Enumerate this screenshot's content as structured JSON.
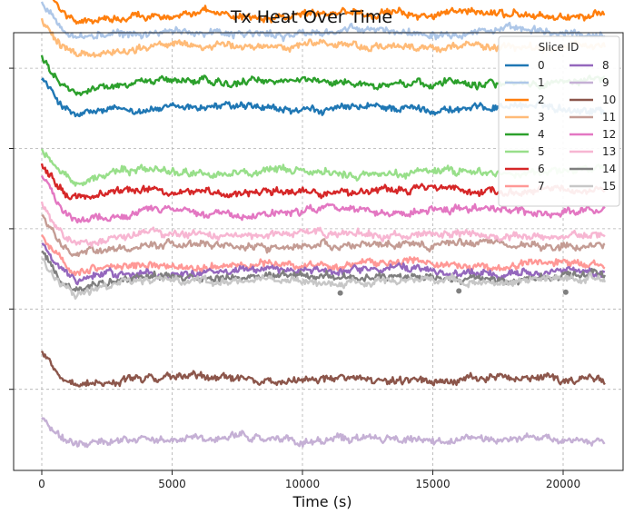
{
  "chart_data": {
    "type": "line",
    "title": "Tx Heat Over Time",
    "xlabel": "Time (s)",
    "ylabel": "",
    "x_ticks": [
      0,
      5000,
      10000,
      15000,
      20000
    ],
    "x_tick_labels": [
      "0",
      "5000",
      "10000",
      "15000",
      "20000"
    ],
    "xlim": [
      -800,
      22800
    ],
    "ylim": [
      0,
      100
    ],
    "y_ticks": [
      15,
      35,
      55,
      75,
      95,
      115
    ],
    "y_tick_labels_visible": false,
    "grid": true,
    "x_range": [
      0,
      21600
    ],
    "legend": {
      "title": "Slice ID",
      "placement": "top-right",
      "columns": 2
    },
    "series": [
      {
        "name": "0",
        "color": "#1f77b4",
        "start": 93.0,
        "dip": 82.5,
        "plateau": 85.0
      },
      {
        "name": "1",
        "color": "#aec7e8",
        "start": 111.0,
        "dip": 102.0,
        "plateau": 104.0
      },
      {
        "name": "2",
        "color": "#ff7f0e",
        "start": 116.0,
        "dip": 106.5,
        "plateau": 108.5
      },
      {
        "name": "3",
        "color": "#ffbb78",
        "start": 107.0,
        "dip": 98.5,
        "plateau": 100.5
      },
      {
        "name": "4",
        "color": "#2ca02c",
        "start": 98.0,
        "dip": 89.5,
        "plateau": 91.5
      },
      {
        "name": "5",
        "color": "#98df8a",
        "start": 75.5,
        "dip": 67.0,
        "plateau": 69.0
      },
      {
        "name": "6",
        "color": "#d62728",
        "start": 71.5,
        "dip": 62.5,
        "plateau": 64.5
      },
      {
        "name": "7",
        "color": "#ff9896",
        "start": 53.0,
        "dip": 43.5,
        "plateau": 46.0
      },
      {
        "name": "8",
        "color": "#9467bd",
        "start": 51.5,
        "dip": 42.0,
        "plateau": 44.5
      },
      {
        "name": "9",
        "color": "#c5b0d5",
        "start": 8.0,
        "dip": 1.0,
        "plateau": 2.5
      },
      {
        "name": "10",
        "color": "#8c564b",
        "start": 24.0,
        "dip": 15.5,
        "plateau": 17.5
      },
      {
        "name": "11",
        "color": "#c49c94",
        "start": 58.0,
        "dip": 48.5,
        "plateau": 51.0
      },
      {
        "name": "12",
        "color": "#e377c2",
        "start": 67.0,
        "dip": 57.5,
        "plateau": 59.5
      },
      {
        "name": "13",
        "color": "#f7b6d2",
        "start": 61.0,
        "dip": 51.5,
        "plateau": 53.5
      },
      {
        "name": "14",
        "color": "#7f7f7f",
        "start": 50.0,
        "dip": 40.5,
        "plateau": 43.0
      },
      {
        "name": "15",
        "color": "#c7c7c7",
        "start": 49.0,
        "dip": 39.0,
        "plateau": 42.0
      }
    ],
    "outlier_markers": [
      {
        "x": 11450,
        "y": 39.0,
        "color": "#7f7f7f"
      },
      {
        "x": 16000,
        "y": 39.5,
        "color": "#7f7f7f"
      },
      {
        "x": 20100,
        "y": 39.2,
        "color": "#7f7f7f"
      }
    ]
  }
}
